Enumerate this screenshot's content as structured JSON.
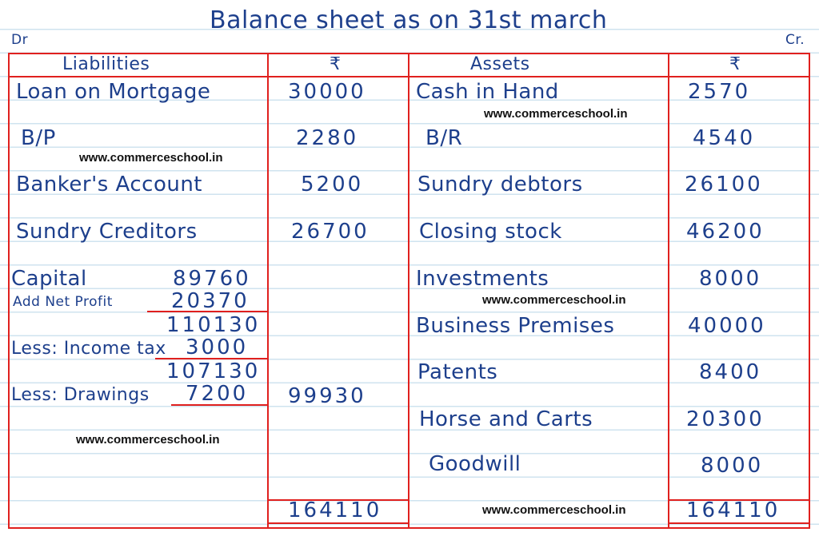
{
  "title": "Balance sheet as on 31st march",
  "dr": "Dr",
  "cr": "Cr.",
  "headers": {
    "liabilities": "Liabilities",
    "amount1": "₹",
    "assets": "Assets",
    "amount2": "₹"
  },
  "liabilities": [
    {
      "label": "Loan on Mortgage",
      "amount": "30000"
    },
    {
      "label": "B/P",
      "amount": "2280"
    },
    {
      "label": "Banker's Account",
      "amount": "5200"
    },
    {
      "label": "Sundry Creditors",
      "amount": "26700"
    }
  ],
  "capital": {
    "label": "Capital",
    "value": "89760",
    "add_label": "Add Net Profit",
    "add_value": "20370",
    "sub1": "110130",
    "less1_label": "Less: Income tax",
    "less1_value": "3000",
    "sub2": "107130",
    "less2_label": "Less: Drawings",
    "less2_value": "7200",
    "net": "99930"
  },
  "assets": [
    {
      "label": "Cash in Hand",
      "amount": "2570"
    },
    {
      "label": "B/R",
      "amount": "4540"
    },
    {
      "label": "Sundry debtors",
      "amount": "26100"
    },
    {
      "label": "Closing stock",
      "amount": "46200"
    },
    {
      "label": "Investments",
      "amount": "8000"
    },
    {
      "label": "Business Premises",
      "amount": "40000"
    },
    {
      "label": "Patents",
      "amount": "8400"
    },
    {
      "label": "Horse and Carts",
      "amount": "20300"
    },
    {
      "label": "Goodwill",
      "amount": "8000"
    }
  ],
  "totals": {
    "liabilities": "164110",
    "assets": "164110"
  },
  "watermark": "www.commerceschool.in",
  "colors": {
    "ink": "#1d3f8c",
    "rule": "#e0201e",
    "lines": "#cfe3ef"
  }
}
